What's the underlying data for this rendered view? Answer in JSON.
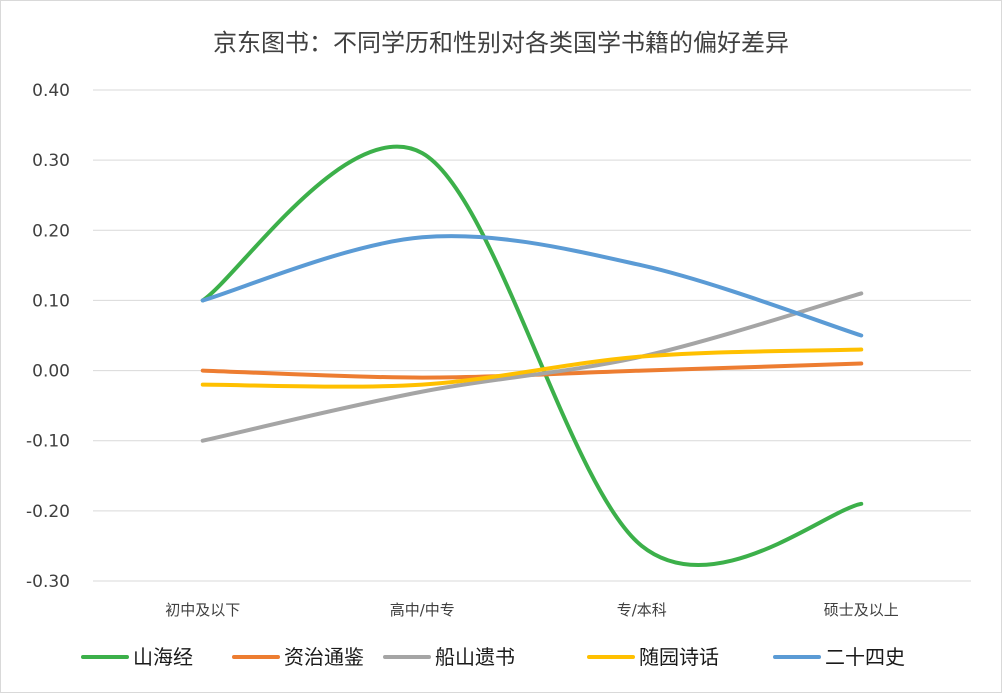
{
  "chart_data": {
    "type": "line",
    "title": "京东图书：不同学历和性别对各类国学书籍的偏好差异",
    "xlabel": "",
    "ylabel": "",
    "categories": [
      "初中及以下",
      "高中/中专",
      "专/本科",
      "硕士及以上"
    ],
    "ylim": [
      -0.3,
      0.4
    ],
    "yticks": [
      "0.40",
      "0.30",
      "0.20",
      "0.10",
      "0.00",
      "-0.10",
      "-0.20",
      "-0.30"
    ],
    "grid": true,
    "smooth": true,
    "legend_position": "bottom",
    "series": [
      {
        "name": "山海经",
        "color": "#3cb04a",
        "values": [
          0.1,
          0.31,
          -0.25,
          -0.19
        ]
      },
      {
        "name": "资治通鉴",
        "color": "#ed7d31",
        "values": [
          0.0,
          -0.01,
          0.0,
          0.01
        ]
      },
      {
        "name": "船山遗书",
        "color": "#a5a5a5",
        "values": [
          -0.1,
          -0.03,
          0.02,
          0.11
        ]
      },
      {
        "name": "随园诗话",
        "color": "#ffc000",
        "values": [
          -0.02,
          -0.02,
          0.02,
          0.03
        ]
      },
      {
        "name": "二十四史",
        "color": "#5b9bd5",
        "values": [
          0.1,
          0.19,
          0.15,
          0.05
        ]
      }
    ]
  }
}
